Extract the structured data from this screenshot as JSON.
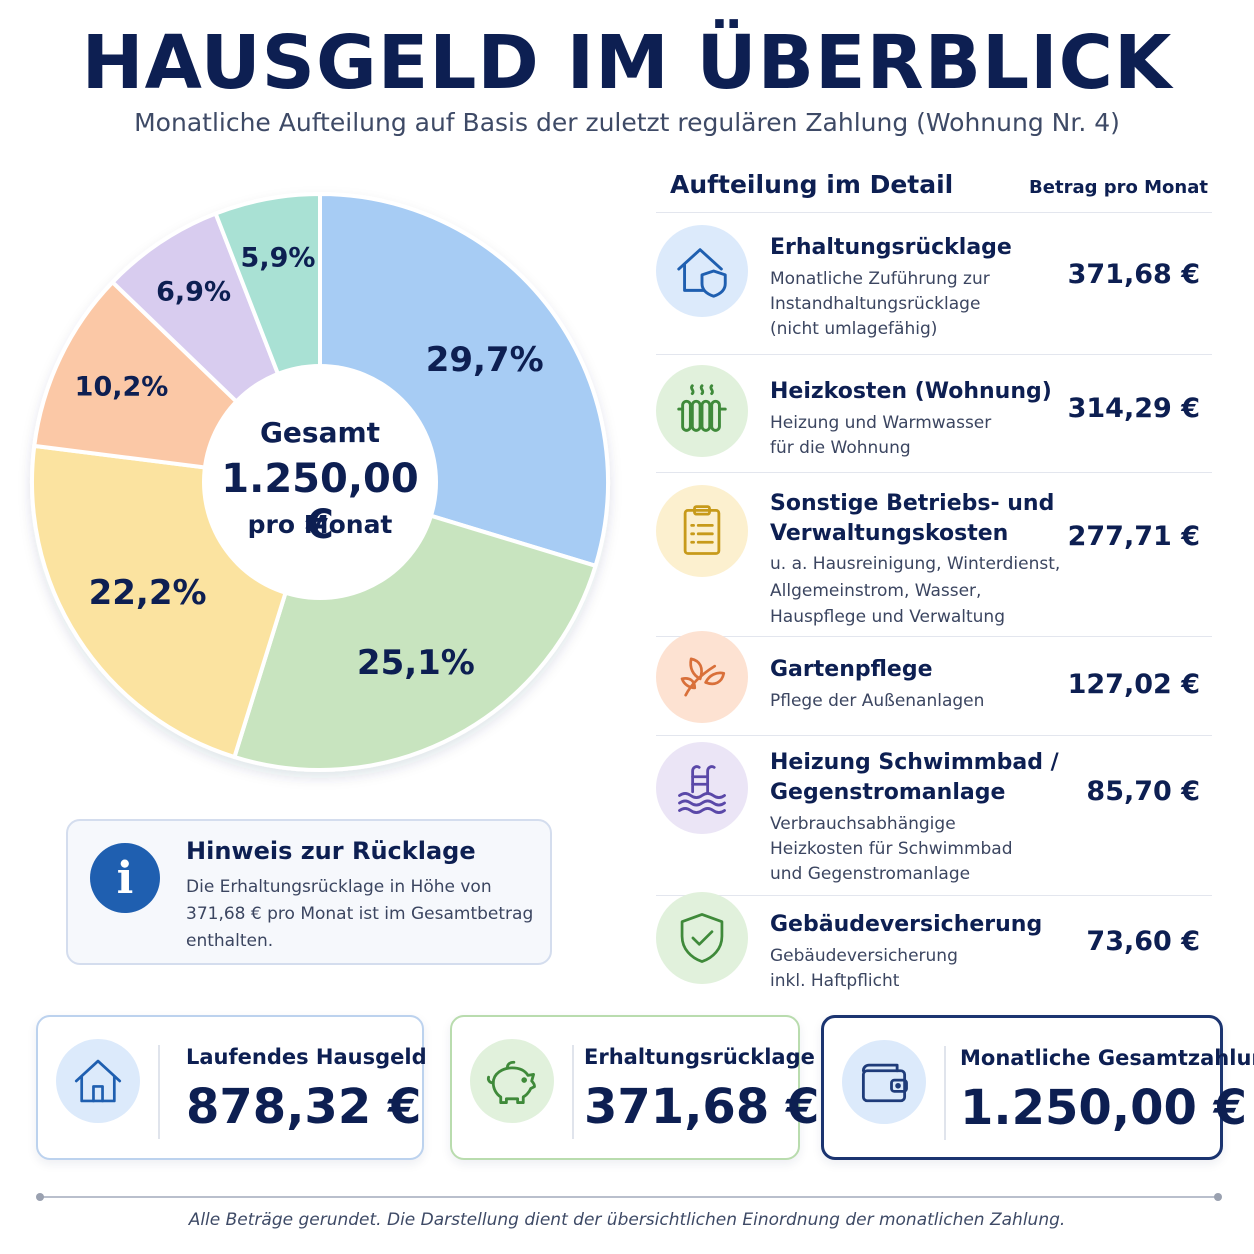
{
  "header": {
    "title": "HAUSGELD IM ÜBERBLICK",
    "subtitle": "Monatliche Aufteilung auf Basis der zuletzt regulären Zahlung (Wohnung Nr. 4)"
  },
  "chart_data": {
    "type": "pie",
    "donut": true,
    "center": {
      "line1": "Gesamt",
      "line2": "1.250,00 €",
      "line3": "pro Monat"
    },
    "slices": [
      {
        "label": "29,7%",
        "value": 29.7,
        "color": "#a7ccf4"
      },
      {
        "label": "25,1%",
        "value": 25.1,
        "color": "#c8e4bf"
      },
      {
        "label": "22,2%",
        "value": 22.2,
        "color": "#fbe3a0"
      },
      {
        "label": "10,2%",
        "value": 10.2,
        "color": "#fbc8a6"
      },
      {
        "label": "6,9%",
        "value": 6.9,
        "color": "#d8ccef"
      },
      {
        "label": "5,9%",
        "value": 5.9,
        "color": "#a9e1d4"
      }
    ]
  },
  "details": {
    "title": "Aufteilung im Detail",
    "amount_header": "Betrag pro Monat",
    "rows": [
      {
        "icon": "house-shield-icon",
        "title": "Erhaltungsrücklage",
        "desc": "Monatliche Zuführung zur Instandhaltungsrücklage (nicht umlagefähig)",
        "amount": "371,68 €",
        "color": "#dceafb",
        "stroke": "#1f5fb0"
      },
      {
        "icon": "radiator-icon",
        "title": "Heizkosten (Wohnung)",
        "desc": "Heizung und Warmwasser für die Wohnung",
        "amount": "314,29 €",
        "color": "#e1f1dc",
        "stroke": "#3f8a3a"
      },
      {
        "icon": "clipboard-icon",
        "title_lines": [
          "Sonstige Betriebs- und",
          "Verwaltungskosten"
        ],
        "desc": "u. a. Hausreinigung, Winterdienst, Allgemeinstrom, Wasser, Hauspflege und Verwaltung",
        "amount": "277,71 €",
        "color": "#fcf0cf",
        "stroke": "#c79a1a"
      },
      {
        "icon": "leaf-icon",
        "title": "Gartenpflege",
        "desc": "Pflege der Außenanlagen",
        "amount": "127,02 €",
        "color": "#fde2d2",
        "stroke": "#d9703a"
      },
      {
        "icon": "pool-icon",
        "title_lines": [
          "Heizung Schwimmbad /",
          "Gegenstromanlage"
        ],
        "desc": "Verbrauchsabhängige Heizkosten für Schwimmbad und Gegenstromanlage",
        "amount": "85,70 €",
        "color": "#ebe5f6",
        "stroke": "#5a48a8"
      },
      {
        "icon": "shield-check-icon",
        "title": "Gebäudeversicherung",
        "desc": "Gebäudeversicherung inkl. Haftpflicht",
        "amount": "73,60 €",
        "color": "#e1f1dc",
        "stroke": "#3f8a3a"
      }
    ]
  },
  "info": {
    "title": "Hinweis zur Rücklage",
    "text": "Die Erhaltungsrücklage in Höhe von 371,68 € pro Monat ist im Gesamtbetrag enthalten.",
    "icon": "info-icon"
  },
  "cards": [
    {
      "label": "Laufendes Hausgeld",
      "value": "878,32 €",
      "icon": "house-icon",
      "border": "#bcd2ee",
      "bg": "#dceafb",
      "stroke": "#1f5fb0"
    },
    {
      "label": "Erhaltungsrücklage",
      "value": "371,68 €",
      "icon": "piggy-bank-icon",
      "border": "#b9dcae",
      "bg": "#e1f1dc",
      "stroke": "#3f8a3a"
    },
    {
      "label": "Monatliche Gesamtzahlung",
      "value": "1.250,00 €",
      "icon": "wallet-icon",
      "border": "#1b3470",
      "bg": "#dceafb",
      "stroke": "#1f3c7a"
    }
  ],
  "footer": {
    "note": "Alle Beträge gerundet. Die Darstellung dient der übersichtlichen Einordnung der monatlichen Zahlung."
  }
}
